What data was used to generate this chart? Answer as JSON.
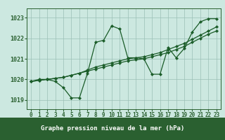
{
  "title": "Graphe pression niveau de la mer (hPa)",
  "hours": [
    0,
    1,
    2,
    3,
    4,
    5,
    6,
    7,
    8,
    9,
    10,
    11,
    12,
    13,
    14,
    15,
    16,
    17,
    18,
    19,
    20,
    21,
    22,
    23
  ],
  "y_zigzag": [
    1019.9,
    1020.0,
    1020.0,
    1019.9,
    1019.6,
    1019.1,
    1019.1,
    1020.3,
    1021.8,
    1021.9,
    1022.6,
    1022.45,
    1021.05,
    1021.05,
    1021.0,
    1020.25,
    1020.25,
    1021.55,
    1021.05,
    1021.5,
    1022.3,
    1022.8,
    1022.95,
    1022.95
  ],
  "y_trend1": [
    1019.9,
    1019.95,
    1020.0,
    1020.05,
    1020.1,
    1020.2,
    1020.3,
    1020.4,
    1020.5,
    1020.6,
    1020.7,
    1020.8,
    1020.9,
    1020.95,
    1021.0,
    1021.1,
    1021.2,
    1021.3,
    1021.45,
    1021.6,
    1021.8,
    1022.0,
    1022.2,
    1022.35
  ],
  "y_trend2": [
    1019.9,
    1019.95,
    1020.0,
    1020.05,
    1020.1,
    1020.2,
    1020.3,
    1020.45,
    1020.6,
    1020.7,
    1020.8,
    1020.9,
    1021.0,
    1021.05,
    1021.1,
    1021.2,
    1021.3,
    1021.45,
    1021.6,
    1021.75,
    1021.95,
    1022.15,
    1022.35,
    1022.55
  ],
  "bg_color": "#cce8e0",
  "grid_color": "#9bbfb5",
  "line_color": "#1a5c28",
  "ylim_min": 1018.55,
  "ylim_max": 1023.45,
  "yticks": [
    1019,
    1020,
    1021,
    1022,
    1023
  ],
  "title_bg": "#2a6030",
  "title_fg": "#ffffff",
  "title_fontsize": 6.5,
  "tick_fontsize": 5.5,
  "ytick_fontsize": 6.0
}
